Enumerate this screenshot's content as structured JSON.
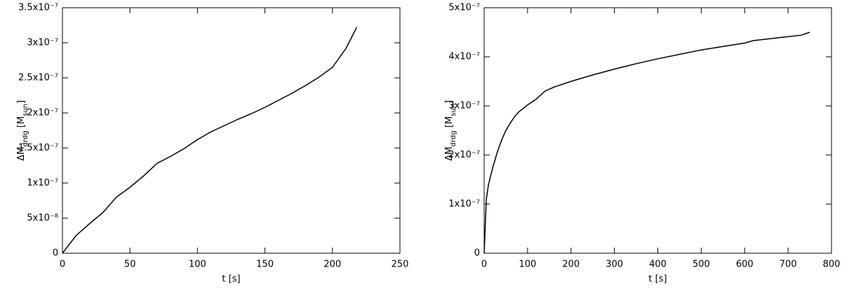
{
  "chart_data": [
    {
      "type": "line",
      "xlabel": "t [s]",
      "ylabel": [
        "ΔM",
        "drdg",
        " [M",
        "sun",
        "]"
      ],
      "color": "#000000",
      "xlim": [
        0,
        250
      ],
      "xticks": [
        0,
        50,
        100,
        150,
        200,
        250
      ],
      "ylim": [
        0,
        3.5e-07
      ],
      "yticks": [
        0,
        {
          "value": 5e-08,
          "label": "5x10⁻⁸"
        },
        {
          "value": 1e-07,
          "label": "1x10⁻⁷"
        },
        {
          "value": 1.5e-07,
          "label": "1.5x10⁻⁷"
        },
        {
          "value": 2e-07,
          "label": "2x10⁻⁷"
        },
        {
          "value": 2.5e-07,
          "label": "2.5x10⁻⁷"
        },
        {
          "value": 3e-07,
          "label": "3x10⁻⁷"
        },
        {
          "value": 3.5e-07,
          "label": "3.5x10⁻⁷"
        }
      ],
      "x": [
        0,
        10,
        20,
        30,
        40,
        50,
        60,
        70,
        80,
        90,
        100,
        110,
        120,
        130,
        140,
        150,
        160,
        170,
        180,
        190,
        200,
        210,
        218
      ],
      "values": [
        0,
        2.5e-08,
        4.2e-08,
        5.8e-08,
        8e-08,
        9.4e-08,
        1.1e-07,
        1.28e-07,
        1.38e-07,
        1.49e-07,
        1.62e-07,
        1.73e-07,
        1.82e-07,
        1.91e-07,
        1.99e-07,
        2.08e-07,
        2.18e-07,
        2.28e-07,
        2.39e-07,
        2.51e-07,
        2.65e-07,
        2.92e-07,
        3.22e-07
      ]
    },
    {
      "type": "line",
      "xlabel": "t [s]",
      "ylabel": [
        "ΔM",
        "drdg",
        " [M",
        "sun",
        "]"
      ],
      "color": "#000000",
      "xlim": [
        0,
        800
      ],
      "xticks": [
        0,
        100,
        200,
        300,
        400,
        500,
        600,
        700,
        800
      ],
      "ylim": [
        0,
        5e-07
      ],
      "yticks": [
        0,
        {
          "value": 1e-07,
          "label": "1x10⁻⁷"
        },
        {
          "value": 2e-07,
          "label": "2x10⁻⁷"
        },
        {
          "value": 3e-07,
          "label": "3x10⁻⁷"
        },
        {
          "value": 4e-07,
          "label": "4x10⁻⁷"
        },
        {
          "value": 5e-07,
          "label": "5x10⁻⁷"
        }
      ],
      "x": [
        0,
        5,
        10,
        20,
        30,
        40,
        50,
        60,
        70,
        80,
        100,
        120,
        140,
        160,
        200,
        250,
        300,
        350,
        400,
        450,
        500,
        550,
        600,
        620,
        700,
        730,
        750
      ],
      "values": [
        0,
        1.1e-07,
        1.4e-07,
        1.75e-07,
        2.05e-07,
        2.3e-07,
        2.5e-07,
        2.65e-07,
        2.78e-07,
        2.88e-07,
        3.02e-07,
        3.14e-07,
        3.3e-07,
        3.38e-07,
        3.5e-07,
        3.63e-07,
        3.75e-07,
        3.86e-07,
        3.96e-07,
        4.05e-07,
        4.14e-07,
        4.21e-07,
        4.28e-07,
        4.33e-07,
        4.41e-07,
        4.44e-07,
        4.5e-07
      ]
    }
  ]
}
